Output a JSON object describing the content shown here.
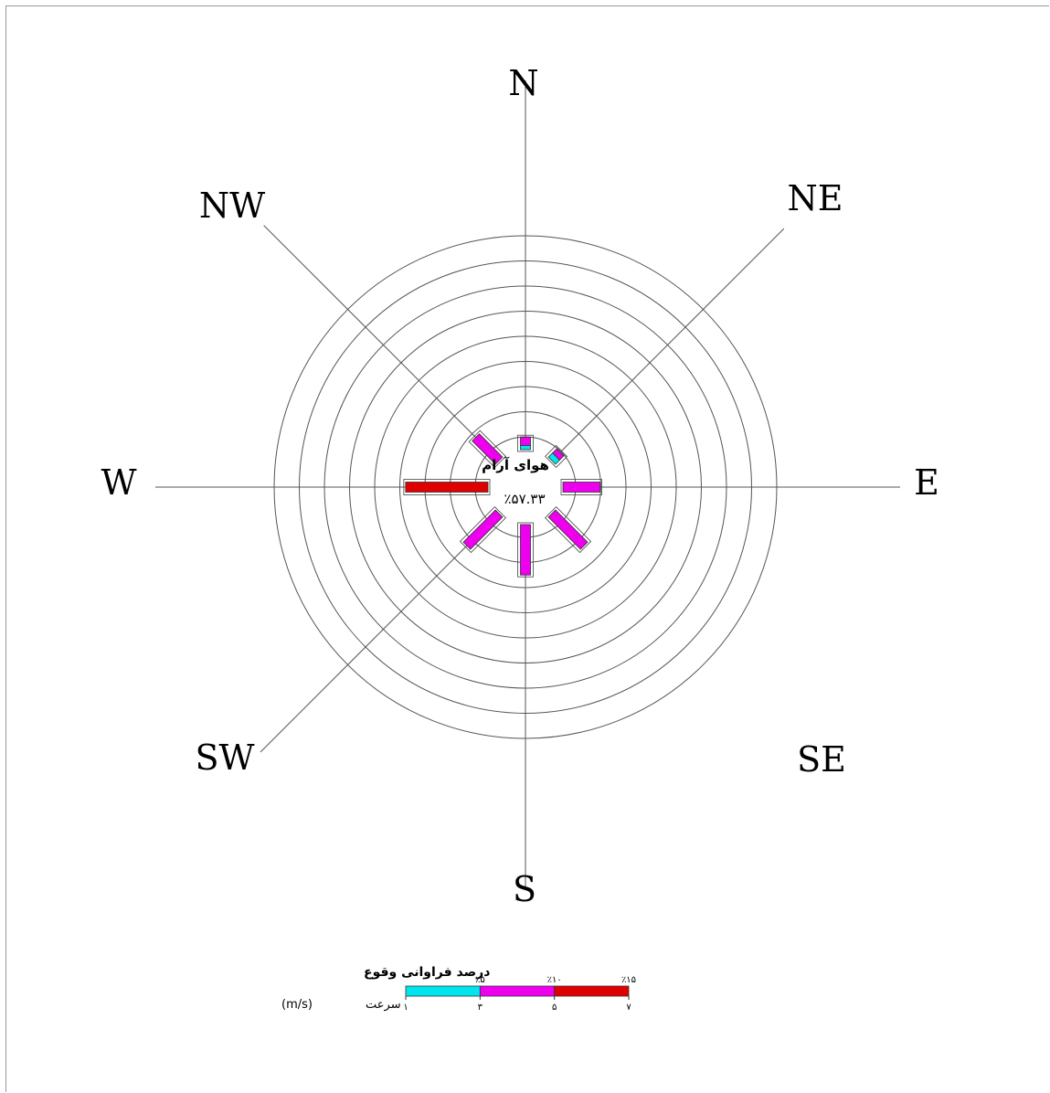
{
  "chart_data": {
    "type": "windrose",
    "directions": [
      "N",
      "NE",
      "E",
      "SE",
      "S",
      "SW",
      "W",
      "NW"
    ],
    "calm": {
      "label": "هوای آرام",
      "value": "٪۵۷.۳۳"
    },
    "rings": 9,
    "speed_classes": [
      {
        "range": "1-3",
        "color": "#00e5ee"
      },
      {
        "range": "3-5",
        "color": "#ee00ee"
      },
      {
        "range": "5-7",
        "color": "#e00000"
      }
    ],
    "segments": [
      {
        "dir": "N",
        "values": [
          0.5,
          1.0,
          0.0
        ]
      },
      {
        "dir": "NE",
        "values": [
          0.7,
          0.7,
          0.0
        ]
      },
      {
        "dir": "E",
        "values": [
          0.0,
          4.4,
          0.0
        ]
      },
      {
        "dir": "SE",
        "values": [
          0.0,
          5.4,
          0.0
        ]
      },
      {
        "dir": "S",
        "values": [
          0.0,
          6.0,
          0.0
        ]
      },
      {
        "dir": "SW",
        "values": [
          0.0,
          5.4,
          0.0
        ]
      },
      {
        "dir": "W",
        "values": [
          0.0,
          0.0,
          9.8
        ]
      },
      {
        "dir": "NW",
        "values": [
          0.0,
          3.9,
          0.0
        ]
      }
    ],
    "legend": {
      "title": "درصد فراوانی وقوع",
      "speed_label": "سرعت",
      "unit": "(m/s)",
      "percent_ticks": [
        "٪۵",
        "٪۱۰",
        "٪۱۵"
      ],
      "speed_ticks": [
        "۱",
        "۳",
        "۵",
        "۷"
      ]
    }
  }
}
